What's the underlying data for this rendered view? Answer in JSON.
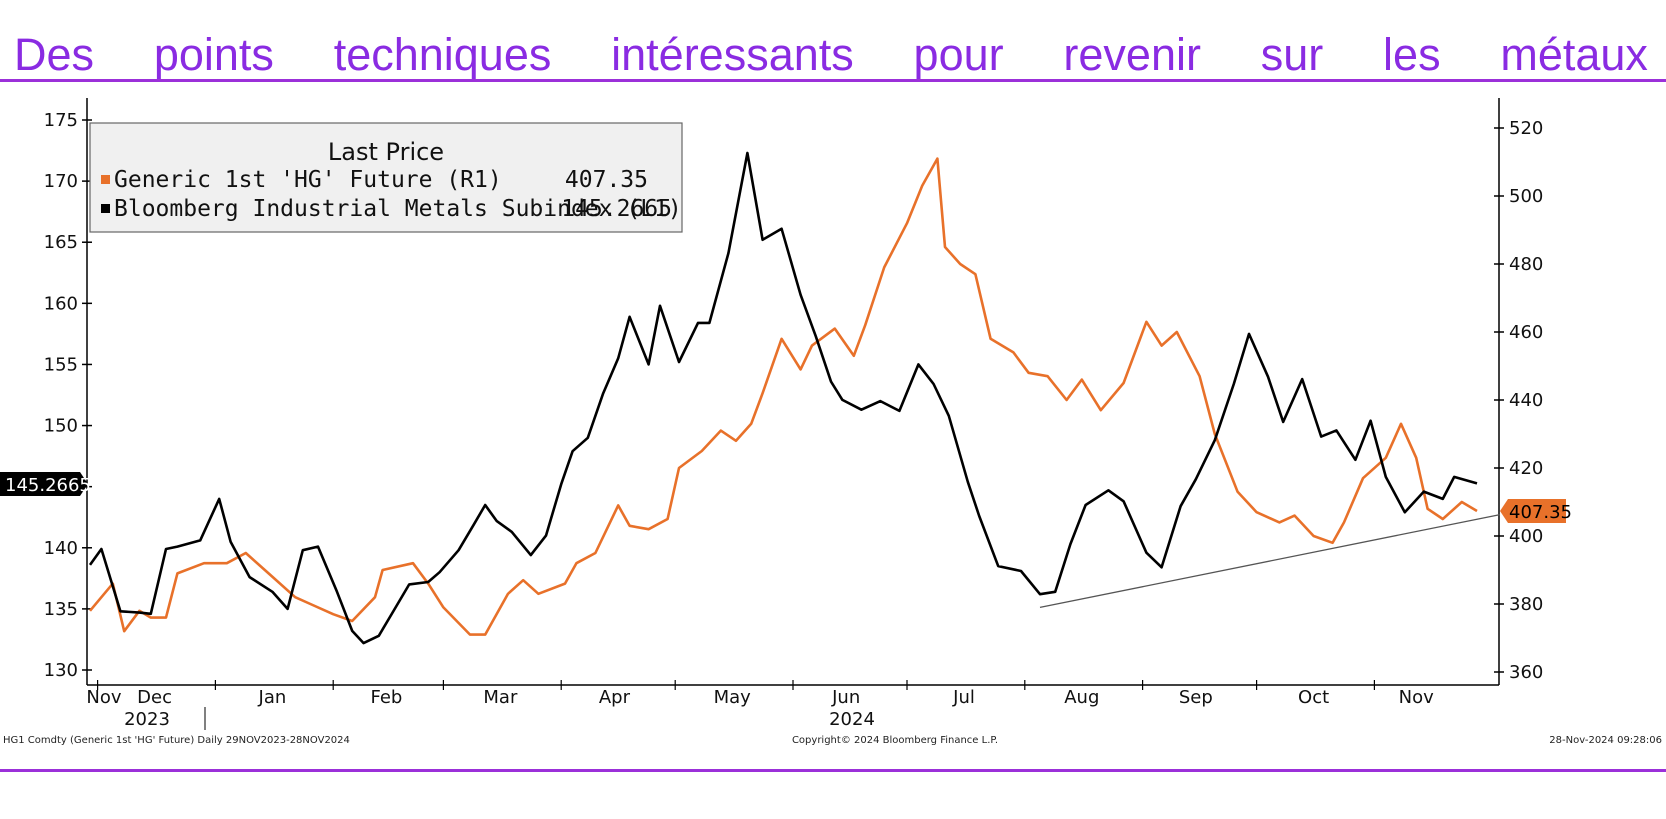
{
  "slide": {
    "title_words": [
      "Des",
      "points",
      "techniques",
      "intéressants",
      "pour",
      "revenir",
      "sur",
      "les",
      "métaux"
    ],
    "title_color": "#8a2be2",
    "rule_color": "#9b30d9"
  },
  "chart_data": {
    "type": "line",
    "legend": {
      "title": "Last Price",
      "entries": [
        {
          "label": "Generic 1st 'HG' Future  (R1)",
          "value": "407.35",
          "color": "#e8712a"
        },
        {
          "label": "Bloomberg Industrial Metals Subindex  (L1)",
          "value": "145.2665",
          "color": "#000000"
        }
      ],
      "placement": "top-left"
    },
    "left_axis": {
      "ticks": [
        130,
        135,
        140,
        145,
        150,
        155,
        160,
        165,
        170,
        175
      ],
      "range": [
        130,
        175
      ],
      "last_value_label": "145.2665",
      "label_color": "#000000"
    },
    "right_axis": {
      "ticks": [
        360,
        380,
        400,
        420,
        440,
        460,
        480,
        500,
        520
      ],
      "range": [
        360,
        520
      ],
      "last_value_label": "407.35",
      "label_color": "#e8712a"
    },
    "x_axis": {
      "months": [
        "Nov",
        "Dec",
        "Jan",
        "Feb",
        "Mar",
        "Apr",
        "May",
        "Jun",
        "Jul",
        "Aug",
        "Sep",
        "Oct",
        "Nov"
      ],
      "years": [
        "2023",
        "2024"
      ],
      "range": [
        "2023-11-29",
        "2024-11-28"
      ]
    },
    "series": [
      {
        "name": "Generic 1st 'HG' Future",
        "axis": "right",
        "color": "#e8712a",
        "points": [
          [
            "2023-11-29",
            378
          ],
          [
            "2023-12-05",
            386
          ],
          [
            "2023-12-08",
            372
          ],
          [
            "2023-12-12",
            378
          ],
          [
            "2023-12-15",
            376
          ],
          [
            "2023-12-19",
            376
          ],
          [
            "2023-12-22",
            389
          ],
          [
            "2023-12-29",
            392
          ],
          [
            "2024-01-04",
            392
          ],
          [
            "2024-01-09",
            395
          ],
          [
            "2024-01-15",
            389
          ],
          [
            "2024-01-22",
            382
          ],
          [
            "2024-01-26",
            380
          ],
          [
            "2024-02-01",
            377
          ],
          [
            "2024-02-06",
            375
          ],
          [
            "2024-02-12",
            382
          ],
          [
            "2024-02-14",
            390
          ],
          [
            "2024-02-22",
            392
          ],
          [
            "2024-02-26",
            386
          ],
          [
            "2024-03-01",
            379
          ],
          [
            "2024-03-08",
            371
          ],
          [
            "2024-03-12",
            371
          ],
          [
            "2024-03-18",
            383
          ],
          [
            "2024-03-22",
            387
          ],
          [
            "2024-03-26",
            383
          ],
          [
            "2024-04-02",
            386
          ],
          [
            "2024-04-05",
            392
          ],
          [
            "2024-04-10",
            395
          ],
          [
            "2024-04-16",
            409
          ],
          [
            "2024-04-19",
            403
          ],
          [
            "2024-04-24",
            402
          ],
          [
            "2024-04-29",
            405
          ],
          [
            "2024-05-02",
            420
          ],
          [
            "2024-05-08",
            425
          ],
          [
            "2024-05-13",
            431
          ],
          [
            "2024-05-17",
            428
          ],
          [
            "2024-05-21",
            433
          ],
          [
            "2024-05-24",
            442
          ],
          [
            "2024-05-29",
            458
          ],
          [
            "2024-06-03",
            449
          ],
          [
            "2024-06-06",
            456
          ],
          [
            "2024-06-12",
            461
          ],
          [
            "2024-06-17",
            453
          ],
          [
            "2024-06-20",
            462
          ],
          [
            "2024-06-25",
            479
          ],
          [
            "2024-07-01",
            492
          ],
          [
            "2024-07-05",
            503
          ],
          [
            "2024-07-09",
            511
          ],
          [
            "2024-07-11",
            485
          ],
          [
            "2024-07-15",
            480
          ],
          [
            "2024-07-19",
            477
          ],
          [
            "2024-07-23",
            458
          ],
          [
            "2024-07-29",
            454
          ],
          [
            "2024-08-02",
            448
          ],
          [
            "2024-08-07",
            447
          ],
          [
            "2024-08-12",
            440
          ],
          [
            "2024-08-16",
            446
          ],
          [
            "2024-08-21",
            437
          ],
          [
            "2024-08-27",
            445
          ],
          [
            "2024-09-02",
            463
          ],
          [
            "2024-09-06",
            456
          ],
          [
            "2024-09-10",
            460
          ],
          [
            "2024-09-16",
            447
          ],
          [
            "2024-09-20",
            430
          ],
          [
            "2024-09-26",
            413
          ],
          [
            "2024-10-01",
            407
          ],
          [
            "2024-10-07",
            404
          ],
          [
            "2024-10-11",
            406
          ],
          [
            "2024-10-16",
            400
          ],
          [
            "2024-10-21",
            398
          ],
          [
            "2024-10-24",
            404
          ],
          [
            "2024-10-29",
            417
          ],
          [
            "2024-11-04",
            423
          ],
          [
            "2024-11-08",
            433
          ],
          [
            "2024-11-12",
            423
          ],
          [
            "2024-11-15",
            408
          ],
          [
            "2024-11-19",
            405
          ],
          [
            "2024-11-24",
            410
          ],
          [
            "2024-11-28",
            407.35
          ]
        ]
      },
      {
        "name": "Bloomberg Industrial Metals Subindex",
        "axis": "left",
        "color": "#000000",
        "points": [
          [
            "2023-11-29",
            138.6
          ],
          [
            "2023-12-02",
            139.9
          ],
          [
            "2023-12-07",
            134.8
          ],
          [
            "2023-12-12",
            134.7
          ],
          [
            "2023-12-15",
            134.6
          ],
          [
            "2023-12-19",
            139.9
          ],
          [
            "2023-12-22",
            140.1
          ],
          [
            "2023-12-28",
            140.6
          ],
          [
            "2024-01-02",
            144.0
          ],
          [
            "2024-01-05",
            140.5
          ],
          [
            "2024-01-10",
            137.6
          ],
          [
            "2024-01-16",
            136.4
          ],
          [
            "2024-01-20",
            135.0
          ],
          [
            "2024-01-24",
            139.8
          ],
          [
            "2024-01-28",
            140.1
          ],
          [
            "2024-02-02",
            136.4
          ],
          [
            "2024-02-06",
            133.2
          ],
          [
            "2024-02-09",
            132.2
          ],
          [
            "2024-02-13",
            132.8
          ],
          [
            "2024-02-17",
            134.9
          ],
          [
            "2024-02-21",
            137.0
          ],
          [
            "2024-02-26",
            137.2
          ],
          [
            "2024-02-29",
            138.0
          ],
          [
            "2024-03-05",
            139.8
          ],
          [
            "2024-03-09",
            141.9
          ],
          [
            "2024-03-12",
            143.5
          ],
          [
            "2024-03-15",
            142.2
          ],
          [
            "2024-03-19",
            141.3
          ],
          [
            "2024-03-24",
            139.4
          ],
          [
            "2024-03-28",
            141.0
          ],
          [
            "2024-04-01",
            145.2
          ],
          [
            "2024-04-04",
            147.9
          ],
          [
            "2024-04-08",
            149.0
          ],
          [
            "2024-04-12",
            152.6
          ],
          [
            "2024-04-16",
            155.5
          ],
          [
            "2024-04-19",
            158.9
          ],
          [
            "2024-04-24",
            155.0
          ],
          [
            "2024-04-27",
            159.8
          ],
          [
            "2024-05-02",
            155.2
          ],
          [
            "2024-05-07",
            158.4
          ],
          [
            "2024-05-10",
            158.4
          ],
          [
            "2024-05-15",
            164.1
          ],
          [
            "2024-05-20",
            172.3
          ],
          [
            "2024-05-24",
            165.2
          ],
          [
            "2024-05-29",
            166.1
          ],
          [
            "2024-06-03",
            160.7
          ],
          [
            "2024-06-07",
            157.3
          ],
          [
            "2024-06-11",
            153.6
          ],
          [
            "2024-06-14",
            152.1
          ],
          [
            "2024-06-19",
            151.3
          ],
          [
            "2024-06-24",
            152.0
          ],
          [
            "2024-06-29",
            151.2
          ],
          [
            "2024-07-04",
            155.0
          ],
          [
            "2024-07-08",
            153.4
          ],
          [
            "2024-07-12",
            150.8
          ],
          [
            "2024-07-17",
            145.4
          ],
          [
            "2024-07-20",
            142.6
          ],
          [
            "2024-07-25",
            138.5
          ],
          [
            "2024-07-31",
            138.1
          ],
          [
            "2024-08-05",
            136.2
          ],
          [
            "2024-08-09",
            136.4
          ],
          [
            "2024-08-13",
            140.3
          ],
          [
            "2024-08-17",
            143.5
          ],
          [
            "2024-08-23",
            144.7
          ],
          [
            "2024-08-27",
            143.8
          ],
          [
            "2024-09-02",
            139.6
          ],
          [
            "2024-09-06",
            138.4
          ],
          [
            "2024-09-11",
            143.4
          ],
          [
            "2024-09-15",
            145.6
          ],
          [
            "2024-09-20",
            148.8
          ],
          [
            "2024-09-25",
            153.4
          ],
          [
            "2024-09-29",
            157.5
          ],
          [
            "2024-10-04",
            154.0
          ],
          [
            "2024-10-08",
            150.3
          ],
          [
            "2024-10-13",
            153.8
          ],
          [
            "2024-10-18",
            149.1
          ],
          [
            "2024-10-22",
            149.6
          ],
          [
            "2024-10-27",
            147.2
          ],
          [
            "2024-10-31",
            150.4
          ],
          [
            "2024-11-04",
            145.8
          ],
          [
            "2024-11-09",
            142.9
          ],
          [
            "2024-11-14",
            144.6
          ],
          [
            "2024-11-19",
            144.0
          ],
          [
            "2024-11-22",
            145.8
          ],
          [
            "2024-11-28",
            145.2665
          ]
        ]
      }
    ],
    "annotation": {
      "type": "trendline",
      "axis": "right",
      "from": [
        "2024-08-05",
        379
      ],
      "to": [
        "2024-11-28",
        406
      ],
      "color": "#555555"
    },
    "footer": {
      "left": "HG1 Comdty (Generic 1st 'HG' Future)  Daily 29NOV2023-28NOV2024",
      "center": "Copyright© 2024 Bloomberg Finance L.P.",
      "right": "28-Nov-2024 09:28:06"
    }
  }
}
